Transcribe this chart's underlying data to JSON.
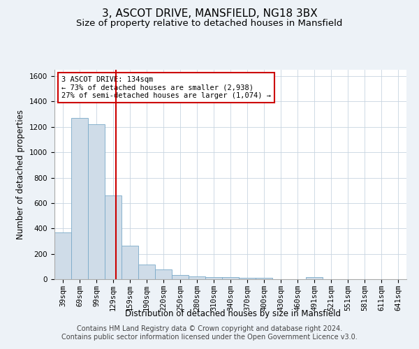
{
  "title": "3, ASCOT DRIVE, MANSFIELD, NG18 3BX",
  "subtitle": "Size of property relative to detached houses in Mansfield",
  "xlabel": "Distribution of detached houses by size in Mansfield",
  "ylabel": "Number of detached properties",
  "categories": [
    "39sqm",
    "69sqm",
    "99sqm",
    "129sqm",
    "159sqm",
    "190sqm",
    "220sqm",
    "250sqm",
    "280sqm",
    "310sqm",
    "340sqm",
    "370sqm",
    "400sqm",
    "430sqm",
    "460sqm",
    "491sqm",
    "521sqm",
    "551sqm",
    "581sqm",
    "611sqm",
    "641sqm"
  ],
  "values": [
    370,
    1270,
    1220,
    660,
    265,
    115,
    78,
    35,
    22,
    18,
    15,
    10,
    10,
    0,
    0,
    18,
    0,
    0,
    0,
    0,
    0
  ],
  "bar_color": "#cfdce8",
  "bar_edge_color": "#7aaac8",
  "vline_color": "#cc0000",
  "annotation_text": "3 ASCOT DRIVE: 134sqm\n← 73% of detached houses are smaller (2,938)\n27% of semi-detached houses are larger (1,074) →",
  "annotation_box_color": "#ffffff",
  "annotation_box_edge": "#cc0000",
  "ylim": [
    0,
    1650
  ],
  "yticks": [
    0,
    200,
    400,
    600,
    800,
    1000,
    1200,
    1400,
    1600
  ],
  "footer1": "Contains HM Land Registry data © Crown copyright and database right 2024.",
  "footer2": "Contains public sector information licensed under the Open Government Licence v3.0.",
  "title_fontsize": 11,
  "subtitle_fontsize": 9.5,
  "label_fontsize": 8.5,
  "tick_fontsize": 7.5,
  "annot_fontsize": 7.5,
  "footer_fontsize": 7,
  "background_color": "#edf2f7",
  "plot_bg_color": "#ffffff",
  "grid_color": "#c8d4e0"
}
